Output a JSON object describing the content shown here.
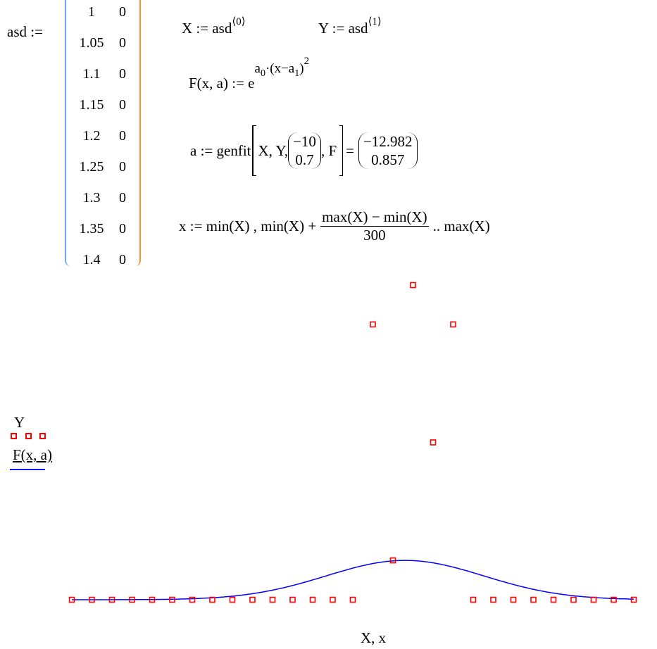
{
  "worksheet": {
    "matrix_name": "asd :=",
    "matrix_rows": [
      [
        "1",
        "0"
      ],
      [
        "1.05",
        "0"
      ],
      [
        "1.1",
        "0"
      ],
      [
        "1.15",
        "0"
      ],
      [
        "1.2",
        "0"
      ],
      [
        "1.25",
        "0"
      ],
      [
        "1.3",
        "0"
      ],
      [
        "1.35",
        "0"
      ],
      [
        "1.4",
        "0"
      ]
    ],
    "X_def": "X := asd",
    "X_sup": "⟨0⟩",
    "Y_def": "Y := asd",
    "Y_sup": "⟨1⟩",
    "F_def": "F(x, a) := e",
    "F_exp_a": "a",
    "F_exp_a_sub": "0",
    "F_exp_mid": "·(x−a",
    "F_exp_sub1": "1",
    "F_exp_end": ")",
    "F_exp_pow": "2",
    "a_def": "a := genfit",
    "a_args_pre": "X, Y,",
    "guess": [
      "−10",
      "0.7"
    ],
    "a_args_post": ", F",
    "equals": "=",
    "result": [
      "−12.982",
      "0.857"
    ],
    "x_def": "x := min(X) , min(X) +",
    "x_num": "max(X) − min(X)",
    "x_den": "300",
    "x_end": ".. max(X)"
  },
  "chart_data": {
    "type": "scatter",
    "xlabel": "X, x",
    "legend": [
      {
        "name": "Y",
        "marker": "square",
        "color": "#ff0000"
      },
      {
        "name": "F(x, a)",
        "line": "solid",
        "color": "#0000ff"
      }
    ],
    "legend_placement": "left",
    "xlim": [
      1,
      2.4
    ],
    "ylim": [
      0,
      8.1
    ],
    "grid": false,
    "points": {
      "x": [
        1,
        1.05,
        1.1,
        1.15,
        1.2,
        1.25,
        1.3,
        1.35,
        1.4,
        1.45,
        1.5,
        1.55,
        1.6,
        1.65,
        1.7,
        1.75,
        1.8,
        1.85,
        1.9,
        1.95,
        2,
        2.05,
        2.1,
        2.15,
        2.2,
        2.25,
        2.3,
        2.35,
        2.4
      ],
      "y": [
        0,
        0,
        0,
        0,
        0,
        0,
        0,
        0,
        0,
        0,
        0,
        0,
        0,
        0,
        0,
        7,
        1,
        8,
        4,
        7,
        0,
        0,
        0,
        0,
        0,
        0,
        0,
        0,
        0
      ]
    },
    "fit_a0": -12.982,
    "colors": {
      "points": "#ff0000",
      "curve": "#0000ff"
    }
  }
}
